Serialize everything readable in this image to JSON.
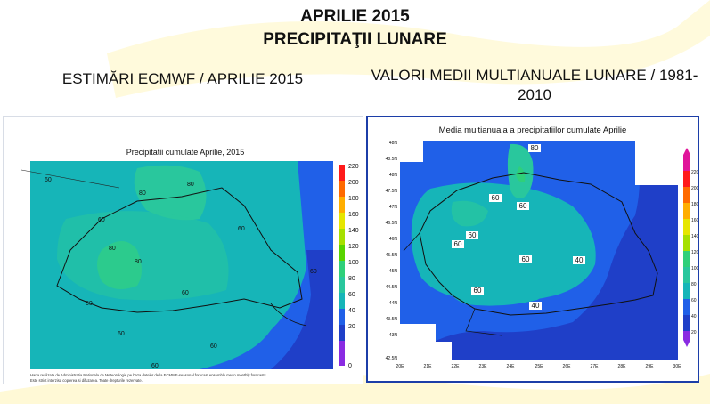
{
  "header": {
    "title": "APRILIE 2015",
    "subtitle": "PRECIPITAŢII LUNARE"
  },
  "left": {
    "heading": "ESTIMĂRI ECMWF / APRILIE 2015",
    "map_title": "Precipitatii cumulate Aprilie, 2015",
    "footnote_1": "Harta realizata de Administratia Nationala de Meteorologie pe baza datelor de la ECMWF-seasonal forecast ensemble mean monthly forecasts",
    "footnote_2": "Este strict interzisa copierea si difuzarea. Toate drepturile rezervate.",
    "contours": [
      "60",
      "80",
      "60",
      "80",
      "80",
      "80",
      "60",
      "60",
      "60",
      "60",
      "60",
      "60",
      "60"
    ],
    "legend": [
      "220",
      "200",
      "180",
      "160",
      "140",
      "120",
      "100",
      "80",
      "60",
      "40",
      "20",
      "0"
    ]
  },
  "right": {
    "heading": "VALORI MEDII MULTIANUALE LUNARE / 1981-2010",
    "map_title": "Media multianuala a precipitatiilor cumulate Aprilie",
    "contours": [
      "80",
      "60",
      "60",
      "60",
      "60",
      "60",
      "60",
      "40",
      "40"
    ],
    "lat_labels": [
      "48N",
      "48.5N",
      "48N",
      "47.5N",
      "47N",
      "46.5N",
      "46N",
      "45.5N",
      "45N",
      "44.5N",
      "44N",
      "43.5N",
      "43N",
      "42.5N"
    ],
    "lon_labels": [
      "20E",
      "21E",
      "22E",
      "23E",
      "24E",
      "25E",
      "26E",
      "27E",
      "28E",
      "29E",
      "30E"
    ],
    "legend": [
      "220",
      "200",
      "180",
      "160",
      "140",
      "120",
      "100",
      "80",
      "60",
      "40",
      "20"
    ]
  },
  "colors": {
    "c20": "#1f3fc8",
    "c40": "#2060e8",
    "c60": "#16b5b8",
    "c80": "#29c79d",
    "c100": "#2fd07a",
    "border": "#1c3ea8",
    "swoosh": "#fff3b0"
  }
}
